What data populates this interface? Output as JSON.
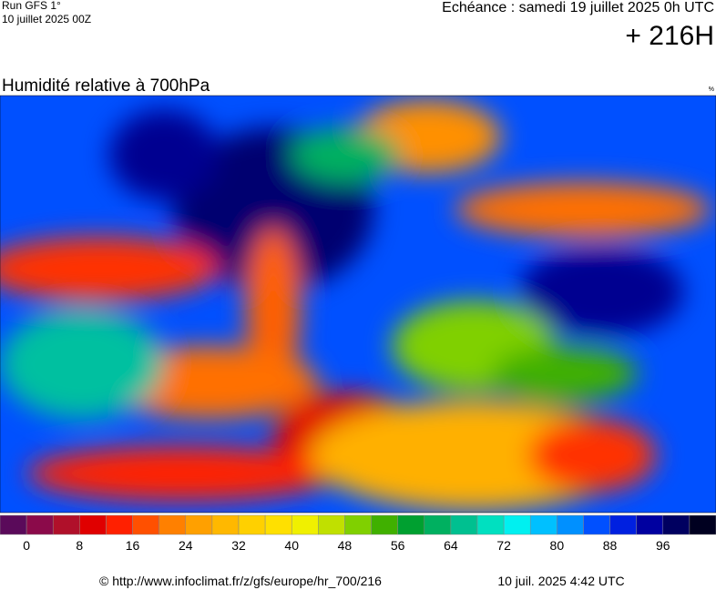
{
  "header": {
    "run": "Run GFS 1°",
    "run_date": "10 juillet 2025 00Z",
    "valid": "Echéance : samedi 19 juillet 2025 0h UTC",
    "lead": "+ 216H"
  },
  "map": {
    "title": "Humidité relative à 700hPa",
    "unit": "%"
  },
  "colorbar": {
    "colors": [
      "#5a0a5a",
      "#8b0a4a",
      "#b0102a",
      "#e00000",
      "#ff2000",
      "#ff5000",
      "#ff8000",
      "#ffa000",
      "#ffb800",
      "#ffd000",
      "#ffe000",
      "#f0f000",
      "#c0e000",
      "#80d000",
      "#40b000",
      "#00a030",
      "#00b060",
      "#00c090",
      "#00e0c0",
      "#00f0f0",
      "#00c0ff",
      "#0090ff",
      "#0050ff",
      "#0020e0",
      "#0000a0",
      "#000060",
      "#000020"
    ],
    "ticks": [
      0,
      8,
      16,
      24,
      32,
      40,
      48,
      56,
      64,
      72,
      80,
      88,
      96
    ]
  },
  "footer": {
    "source": "© http://www.infoclimat.fr/z/gfs/europe/hr_700/216",
    "generated": "10 juil. 2025  4:42 UTC"
  }
}
